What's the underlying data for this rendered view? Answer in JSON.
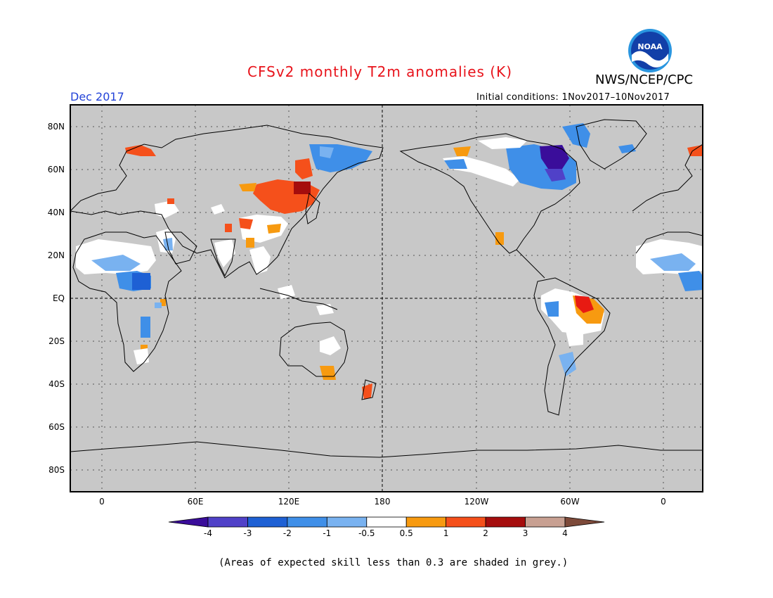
{
  "title": "CFSv2 monthly T2m anomalies (K)",
  "valid_month": "Dec 2017",
  "agency": "NWS/NCEP/CPC",
  "logo_text": "NOAA",
  "initial_conditions": "Initial conditions: 1Nov2017–10Nov2017",
  "footnote": "(Areas of expected skill less than 0.3 are shaded in grey.)",
  "colors": {
    "ocean_low_skill": "#c8c8c8",
    "neg4": "#3a0d9a",
    "neg3": "#5041c8",
    "neg2": "#1e60d4",
    "neg1": "#3f8fe8",
    "neg05": "#79b2f0",
    "near0": "#ffffff",
    "pos05": "#f79a10",
    "pos1": "#f5501b",
    "pos2": "#e81a12",
    "pos3": "#a50d0d",
    "pos4": "#c8a092",
    "pos4plus": "#7d4a3a"
  },
  "map": {
    "lat_labels": [
      "80N",
      "60N",
      "40N",
      "20N",
      "EQ",
      "20S",
      "40S",
      "60S",
      "80S"
    ],
    "lon_labels": [
      "0",
      "60E",
      "120E",
      "180",
      "120W",
      "60W",
      "0"
    ]
  },
  "colorbar": {
    "tick_labels": [
      "-4",
      "-3",
      "-2",
      "-1",
      "-0.5",
      "0.5",
      "1",
      "2",
      "3",
      "4"
    ],
    "bins": [
      {
        "label": "< -4",
        "color": "#3a0d9a"
      },
      {
        "label": "-4 to -3",
        "color": "#5041c8"
      },
      {
        "label": "-3 to -2",
        "color": "#1e60d4"
      },
      {
        "label": "-2 to -1",
        "color": "#3f8fe8"
      },
      {
        "label": "-1 to -0.5",
        "color": "#79b2f0"
      },
      {
        "label": "-0.5 to 0.5",
        "color": "#ffffff"
      },
      {
        "label": "0.5 to 1",
        "color": "#f79a10"
      },
      {
        "label": "1 to 2",
        "color": "#f5501b"
      },
      {
        "label": "2 to 3",
        "color": "#a50d0d"
      },
      {
        "label": "3 to 4",
        "color": "#c8a092"
      },
      {
        "label": "> 4",
        "color": "#7d4a3a"
      }
    ]
  }
}
